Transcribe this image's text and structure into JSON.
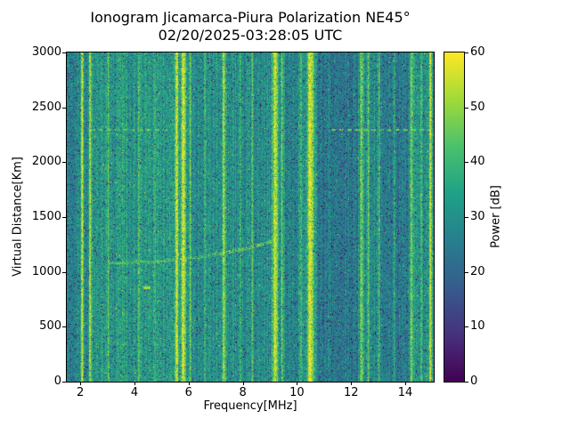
{
  "figure": {
    "background": "#ffffff",
    "axis_color": "#000000"
  },
  "chart_data": {
    "type": "heatmap",
    "title_line1": "Ionogram Jicamarca-Piura Polarization NE45°",
    "title_line2": "02/20/2025-03:28:05 UTC",
    "xlabel": "Frequency[MHz]",
    "ylabel": "Virtual Distance[Km]",
    "xlim": [
      1.5,
      15.05
    ],
    "ylim": [
      0,
      3000
    ],
    "xticks": [
      2,
      4,
      6,
      8,
      10,
      12,
      14
    ],
    "yticks": [
      0,
      500,
      1000,
      1500,
      2000,
      2500,
      3000
    ],
    "grid": false,
    "colorbar": {
      "label": "Power [dB]",
      "min": 0,
      "max": 60,
      "ticks": [
        0,
        10,
        20,
        30,
        40,
        50,
        60
      ],
      "colormap": "viridis",
      "colormap_stops": [
        "#440154",
        "#46327e",
        "#365c8d",
        "#277f8e",
        "#1fa187",
        "#4ac16d",
        "#a0da39",
        "#fde725"
      ]
    },
    "noise_background": {
      "mean_db": 30,
      "spread_db": 18,
      "column_streak_db": 9,
      "dark_speck_probability": 0.05,
      "bright_speck_probability": 0.012
    },
    "interference_lines": [
      {
        "freq_mhz": 2.05,
        "sigma_mhz": 0.03,
        "amp_db": 28
      },
      {
        "freq_mhz": 2.35,
        "sigma_mhz": 0.03,
        "amp_db": 24
      },
      {
        "freq_mhz": 3.02,
        "sigma_mhz": 0.025,
        "amp_db": 10
      },
      {
        "freq_mhz": 3.55,
        "sigma_mhz": 0.025,
        "amp_db": 8
      },
      {
        "freq_mhz": 4.15,
        "sigma_mhz": 0.025,
        "amp_db": 9
      },
      {
        "freq_mhz": 4.75,
        "sigma_mhz": 0.025,
        "amp_db": 8
      },
      {
        "freq_mhz": 5.55,
        "sigma_mhz": 0.05,
        "amp_db": 25
      },
      {
        "freq_mhz": 5.8,
        "sigma_mhz": 0.06,
        "amp_db": 28
      },
      {
        "freq_mhz": 6.05,
        "sigma_mhz": 0.03,
        "amp_db": 15
      },
      {
        "freq_mhz": 6.6,
        "sigma_mhz": 0.025,
        "amp_db": 8
      },
      {
        "freq_mhz": 7.3,
        "sigma_mhz": 0.04,
        "amp_db": 24
      },
      {
        "freq_mhz": 7.9,
        "sigma_mhz": 0.025,
        "amp_db": 8
      },
      {
        "freq_mhz": 8.35,
        "sigma_mhz": 0.03,
        "amp_db": 12
      },
      {
        "freq_mhz": 9.2,
        "sigma_mhz": 0.07,
        "amp_db": 28
      },
      {
        "freq_mhz": 9.45,
        "sigma_mhz": 0.03,
        "amp_db": 15
      },
      {
        "freq_mhz": 10.15,
        "sigma_mhz": 0.03,
        "amp_db": 13
      },
      {
        "freq_mhz": 10.5,
        "sigma_mhz": 0.09,
        "amp_db": 29
      },
      {
        "freq_mhz": 12.4,
        "sigma_mhz": 0.04,
        "amp_db": 19
      },
      {
        "freq_mhz": 12.65,
        "sigma_mhz": 0.03,
        "amp_db": 15
      },
      {
        "freq_mhz": 13.05,
        "sigma_mhz": 0.025,
        "amp_db": 11
      },
      {
        "freq_mhz": 13.6,
        "sigma_mhz": 0.03,
        "amp_db": 13
      },
      {
        "freq_mhz": 14.25,
        "sigma_mhz": 0.04,
        "amp_db": 17
      },
      {
        "freq_mhz": 14.6,
        "sigma_mhz": 0.03,
        "amp_db": 13
      },
      {
        "freq_mhz": 14.95,
        "sigma_mhz": 0.05,
        "amp_db": 21
      }
    ],
    "dark_bands": [
      {
        "from_mhz": 1.5,
        "to_mhz": 1.95,
        "delta_db": -2
      },
      {
        "from_mhz": 9.55,
        "to_mhz": 10.05,
        "delta_db": -4
      },
      {
        "from_mhz": 10.75,
        "to_mhz": 12.25,
        "delta_db": -6
      },
      {
        "from_mhz": 13.1,
        "to_mhz": 14.1,
        "delta_db": -5
      },
      {
        "from_mhz": 2.4,
        "to_mhz": 5.4,
        "delta_db": 2
      }
    ],
    "echo_trace": {
      "freq_start_mhz": 3.0,
      "freq_end_mhz": 9.4,
      "alt_start_km": 1080,
      "alt_end_km": 1300,
      "power_db": 46
    },
    "horizontal_streak": {
      "altitude_km": 2300,
      "segments_mhz": [
        [
          2.3,
          5.2
        ],
        [
          11.3,
          14.9
        ]
      ],
      "power_db": 47
    },
    "spots": [
      {
        "freq_mhz": 4.45,
        "alt_km": 850,
        "power_db": 52
      }
    ]
  }
}
